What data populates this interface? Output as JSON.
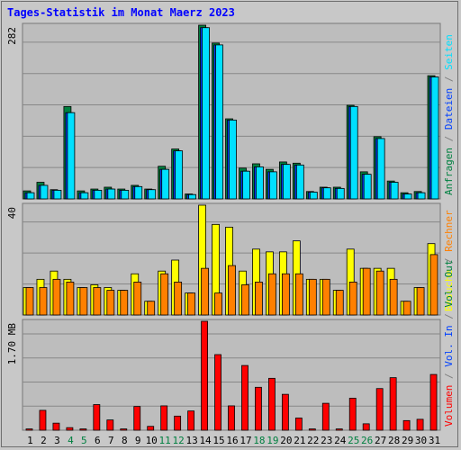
{
  "chart_data": {
    "title": "Tages-Statistik im Monat Maerz 2023",
    "type": "bar",
    "days": [
      "1",
      "2",
      "3",
      "4",
      "5",
      "6",
      "7",
      "8",
      "9",
      "10",
      "11",
      "12",
      "13",
      "14",
      "15",
      "16",
      "17",
      "18",
      "19",
      "20",
      "21",
      "22",
      "23",
      "24",
      "25",
      "26",
      "27",
      "28",
      "29",
      "30",
      "31"
    ],
    "weekend_days": [
      "4",
      "5",
      "11",
      "12",
      "18",
      "19",
      "25",
      "26"
    ],
    "panels": [
      {
        "name": "requests",
        "max_label": "282",
        "ymax": 282,
        "series": [
          {
            "name": "Anfragen",
            "color": "#008040",
            "values": [
              13,
              27,
              15,
              150,
              13,
              16,
              19,
              16,
              22,
              16,
              53,
              81,
              8,
              282,
              253,
              130,
              50,
              57,
              48,
              60,
              58,
              12,
              19,
              19,
              152,
              44,
              101,
              29,
              10,
              12,
              200
            ]
          },
          {
            "name": "Dateien",
            "color": "#0040ff",
            "values": [
              10,
              22,
              14,
              140,
              10,
              14,
              16,
              14,
              20,
              15,
              48,
              78,
              7,
              278,
              250,
              128,
              45,
              52,
              44,
              56,
              55,
              11,
              18,
              17,
              150,
              40,
              98,
              27,
              8,
              10,
              198
            ]
          },
          {
            "name": "Seiten",
            "color": "#00e0ff",
            "values": [
              10,
              22,
              14,
              140,
              10,
              14,
              16,
              14,
              20,
              15,
              48,
              78,
              7,
              278,
              250,
              128,
              45,
              52,
              44,
              56,
              55,
              11,
              18,
              17,
              150,
              40,
              98,
              27,
              8,
              10,
              198
            ]
          }
        ],
        "axis_labels": [
          {
            "text": "Anfragen",
            "color": "#008040"
          },
          {
            "text": " / ",
            "color": "#808080"
          },
          {
            "text": "Dateien",
            "color": "#0040ff"
          },
          {
            "text": " / ",
            "color": "#808080"
          },
          {
            "text": "Seiten",
            "color": "#00e0ff"
          }
        ]
      },
      {
        "name": "visits",
        "max_label": "40",
        "ymax": 40,
        "series": [
          {
            "name": "Besuche",
            "color": "#ffff00",
            "values": [
              10,
              13,
              16,
              13,
              10,
              11,
              10,
              9,
              15,
              5,
              16,
              20,
              8,
              40,
              33,
              32,
              16,
              24,
              23,
              23,
              27,
              13,
              13,
              9,
              24,
              17,
              17,
              17,
              5,
              10,
              26
            ]
          },
          {
            "name": "Rechner",
            "color": "#ff8000",
            "values": [
              10,
              10,
              13,
              12,
              10,
              10,
              9,
              9,
              12,
              5,
              15,
              12,
              8,
              17,
              8,
              18,
              11,
              12,
              15,
              15,
              15,
              13,
              13,
              9,
              12,
              17,
              16,
              13,
              5,
              10,
              22
            ]
          }
        ],
        "axis_labels": [
          {
            "text": "Besuche",
            "color": "#ffff00"
          },
          {
            "text": " / ",
            "color": "#808080"
          },
          {
            "text": "Rechner",
            "color": "#ff8000"
          }
        ]
      },
      {
        "name": "volume",
        "max_label": "1.70 MB",
        "ymax": 1.7,
        "series": [
          {
            "name": "Volumen",
            "color": "#ff0000",
            "values": [
              0.02,
              0.31,
              0.11,
              0.04,
              0.02,
              0.4,
              0.16,
              0.02,
              0.37,
              0.06,
              0.38,
              0.22,
              0.3,
              1.7,
              1.18,
              0.38,
              1.01,
              0.67,
              0.81,
              0.56,
              0.19,
              0.02,
              0.42,
              0.02,
              0.5,
              0.1,
              0.65,
              0.82,
              0.15,
              0.17,
              0.87
            ]
          }
        ],
        "axis_labels": [
          {
            "text": "Volumen",
            "color": "#ff0000"
          },
          {
            "text": " / ",
            "color": "#808080"
          },
          {
            "text": "Vol. In",
            "color": "#0040ff"
          },
          {
            "text": " / ",
            "color": "#808080"
          },
          {
            "text": "Vol. Out",
            "color": "#008040"
          }
        ]
      }
    ]
  }
}
